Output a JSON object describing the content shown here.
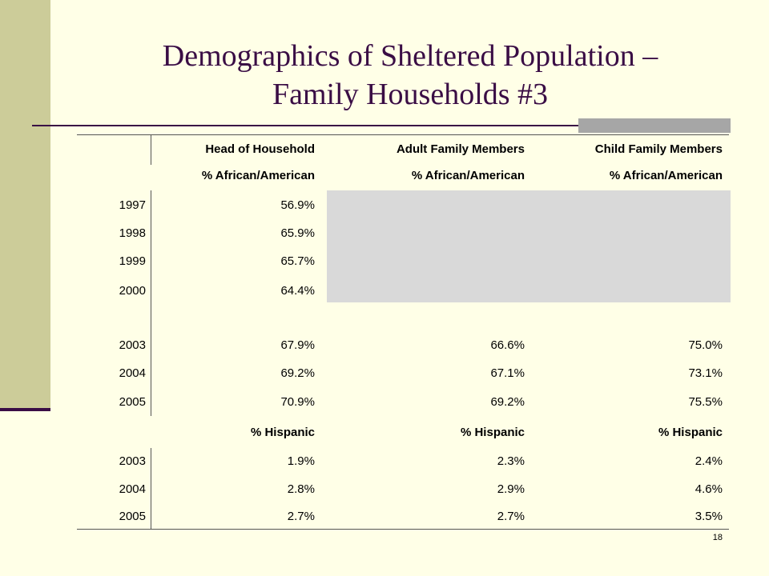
{
  "title": [
    "Demographics of Sheltered Population –",
    "Family Households #3"
  ],
  "table": {
    "header": [
      "Head of Household",
      "Adult Family Members",
      "Child Family Members"
    ],
    "sections": [
      {
        "label_row": [
          "% African/American",
          "% African/American",
          "% African/American"
        ],
        "rows": [
          {
            "year": "1997",
            "cells": [
              "56.9%"
            ]
          },
          {
            "year": "1998",
            "cells": [
              "65.9%"
            ]
          },
          {
            "year": "1999",
            "cells": [
              "65.7%"
            ]
          },
          {
            "year": "2000",
            "cells": [
              "64.4%"
            ]
          },
          {
            "year": "2003",
            "cells": [
              "67.9%",
              "66.6%",
              "75.0%"
            ]
          },
          {
            "year": "2004",
            "cells": [
              "69.2%",
              "67.1%",
              "73.1%"
            ]
          },
          {
            "year": "2005",
            "cells": [
              "70.9%",
              "69.2%",
              "75.5%"
            ]
          }
        ]
      },
      {
        "label_row": [
          "% Hispanic",
          "% Hispanic",
          "% Hispanic"
        ],
        "rows": [
          {
            "year": "2003",
            "cells": [
              "1.9%",
              "2.3%",
              "2.4%"
            ]
          },
          {
            "year": "2004",
            "cells": [
              "2.8%",
              "2.9%",
              "4.6%"
            ]
          },
          {
            "year": "2005",
            "cells": [
              "2.7%",
              "2.7%",
              "3.5%"
            ]
          }
        ]
      }
    ]
  },
  "page_number": "18"
}
